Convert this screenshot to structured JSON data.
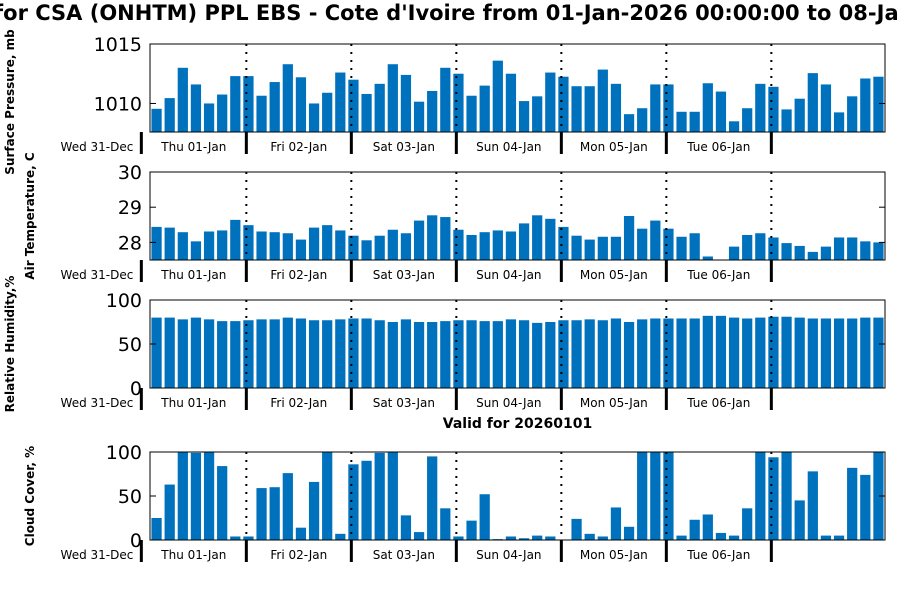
{
  "title": "for CSA (ONHTM) PPL EBS  - Cote d'Ivoire from 01-Jan-2026 00:00:00 to 08-Ja",
  "valid_label": "Valid for 20260101",
  "start_label": "Wed 31-Dec",
  "day_labels": [
    "Thu 01-Jan",
    "Fri 02-Jan",
    "Sat 03-Jan",
    "Sun 04-Jan",
    "Mon 05-Jan",
    "Tue 06-Jan"
  ],
  "colors": {
    "bar": "#0072bd",
    "axis": "#000000"
  },
  "chart_data": [
    {
      "type": "bar",
      "ylabel": "Surface Pressure, mb",
      "ylim": [
        1007.6,
        1015
      ],
      "yticks": [
        1010,
        1015
      ],
      "values": [
        1009.55,
        1010.45,
        1013.0,
        1011.6,
        1010.0,
        1010.75,
        1012.3,
        1012.3,
        1010.65,
        1011.8,
        1013.3,
        1012.2,
        1010.0,
        1010.9,
        1012.6,
        1012.0,
        1010.8,
        1011.65,
        1013.3,
        1012.4,
        1010.15,
        1011.05,
        1013.0,
        1012.5,
        1010.65,
        1011.5,
        1013.6,
        1012.5,
        1010.2,
        1010.6,
        1012.6,
        1012.25,
        1011.45,
        1011.45,
        1012.85,
        1011.65,
        1009.1,
        1009.6,
        1011.6,
        1011.6,
        1009.3,
        1009.3,
        1011.7,
        1011.0,
        1008.5,
        1009.6,
        1011.65,
        1011.4,
        1009.5,
        1010.4,
        1012.55,
        1011.6,
        1009.25,
        1010.6,
        1012.1,
        1012.25
      ]
    },
    {
      "type": "bar",
      "ylabel": "Air Temperature, C",
      "ylim": [
        27.5,
        30
      ],
      "yticks": [
        28,
        29,
        30
      ],
      "values": [
        28.44,
        28.42,
        28.29,
        28.03,
        28.31,
        28.34,
        28.64,
        28.49,
        28.31,
        28.29,
        28.26,
        28.08,
        28.42,
        28.49,
        28.34,
        28.19,
        28.06,
        28.19,
        28.36,
        28.26,
        28.62,
        28.77,
        28.72,
        28.36,
        28.21,
        28.29,
        28.34,
        28.31,
        28.54,
        28.77,
        28.67,
        28.44,
        28.19,
        28.08,
        28.16,
        28.16,
        28.75,
        28.39,
        28.62,
        28.39,
        28.16,
        28.26,
        27.6,
        27.4,
        27.88,
        28.21,
        28.26,
        28.14,
        27.98,
        27.9,
        27.73,
        27.88,
        28.14,
        28.14,
        28.03,
        28.0
      ]
    },
    {
      "type": "bar",
      "ylabel": "Relative Humidity,%",
      "ylim": [
        0,
        100
      ],
      "yticks": [
        0,
        50,
        100
      ],
      "values": [
        80,
        80,
        78,
        80,
        78,
        76,
        76,
        77,
        78,
        78,
        80,
        79,
        77,
        77,
        78,
        79,
        79,
        77,
        75,
        78,
        75,
        75,
        76,
        77,
        77,
        76,
        76,
        78,
        77,
        74,
        75,
        77,
        77,
        78,
        77,
        79,
        75,
        78,
        79,
        79,
        79,
        79,
        82,
        82,
        80,
        79,
        80,
        81,
        81,
        80,
        79,
        79,
        79,
        79,
        80,
        80
      ]
    },
    {
      "type": "bar",
      "ylabel": "Cloud Cover, %",
      "ylim": [
        0,
        100
      ],
      "yticks": [
        0,
        50,
        100
      ],
      "values": [
        25,
        63,
        100,
        99,
        100,
        84,
        4,
        4,
        59,
        60,
        76,
        14,
        66,
        100,
        7,
        86,
        90,
        99,
        100,
        28,
        9,
        95,
        36,
        4,
        22,
        52,
        1,
        4,
        2,
        5,
        4,
        0,
        24,
        7,
        4,
        37,
        15,
        100,
        100,
        100,
        5,
        23,
        29,
        8,
        5,
        36,
        100,
        94,
        100,
        45,
        78,
        5,
        5,
        82,
        74,
        100
      ]
    }
  ]
}
